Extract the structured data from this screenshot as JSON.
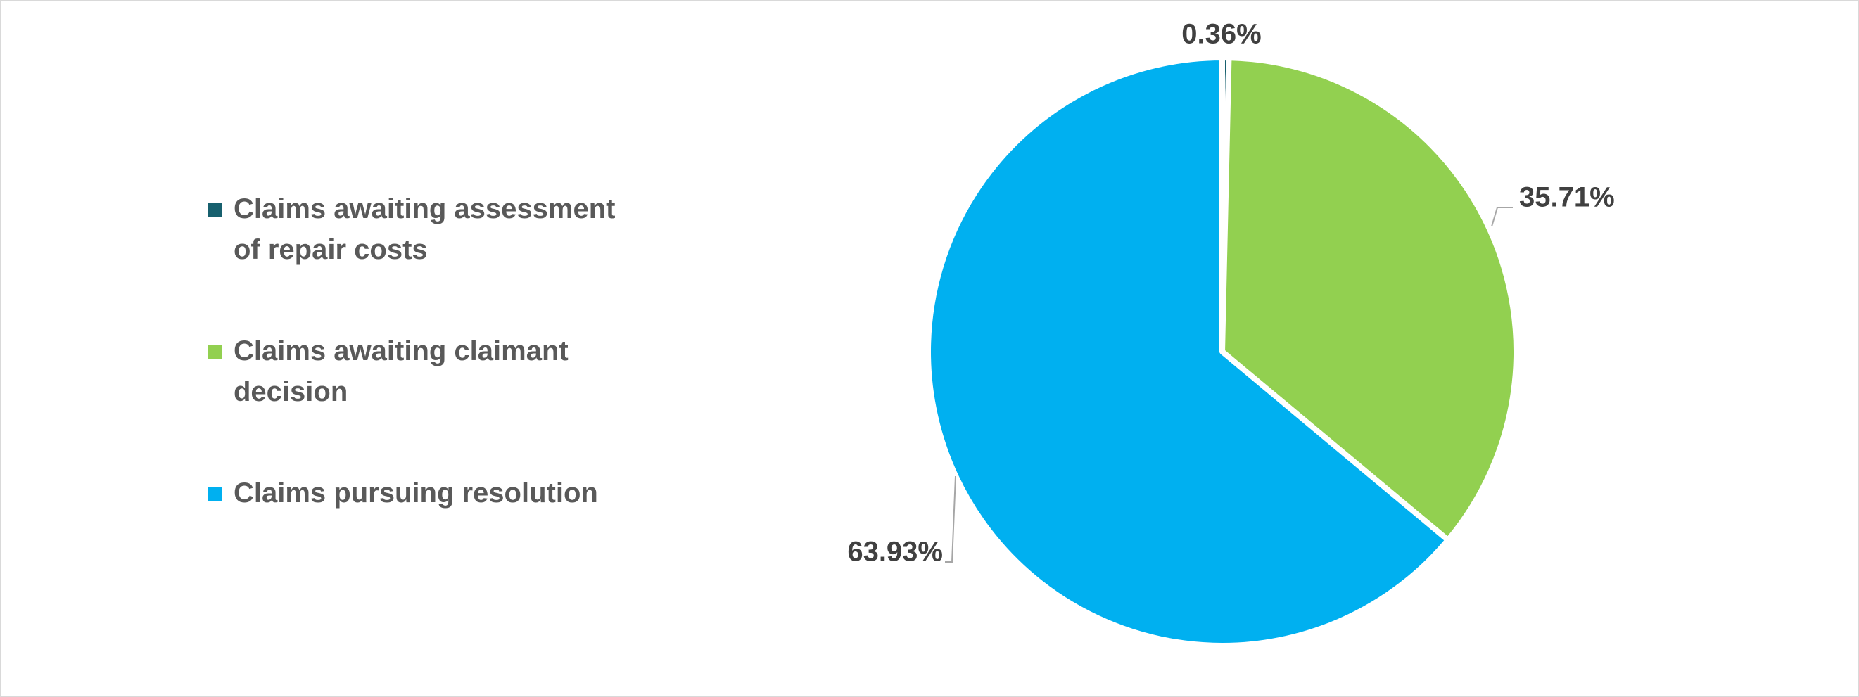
{
  "chart_data": {
    "type": "pie",
    "categories": [
      "Claims awaiting assessment of repair costs",
      "Claims awaiting claimant decision",
      "Claims pursuing resolution"
    ],
    "values": [
      0.36,
      35.71,
      63.93
    ],
    "value_labels": [
      "0.36%",
      "35.71%",
      "63.93%"
    ],
    "colors": [
      "#17606e",
      "#92d050",
      "#00b0f0"
    ],
    "legend": "left"
  }
}
